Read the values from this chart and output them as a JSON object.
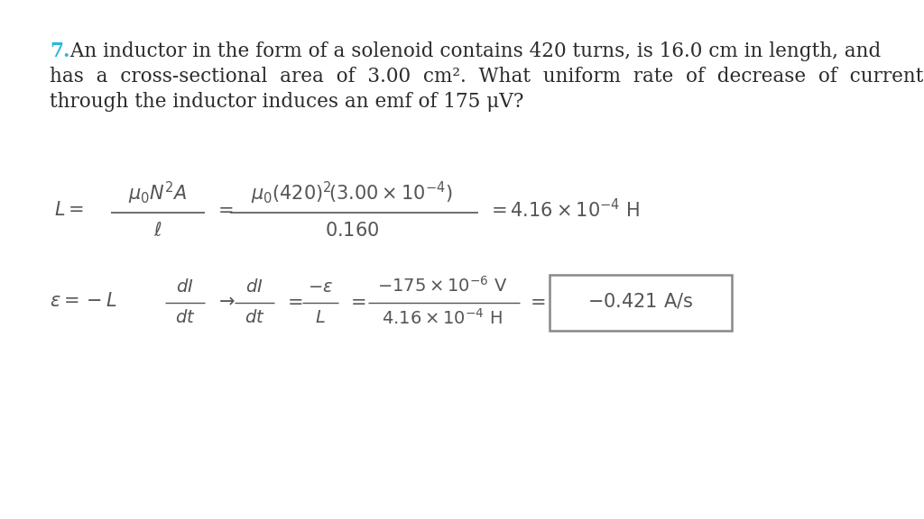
{
  "background_color": "#ffffff",
  "problem_number": "7.",
  "problem_number_color": "#29b6d8",
  "text_color": "#2b2b2b",
  "eq_color": "#555555",
  "box_edge_color": "#888888",
  "figsize": [
    10.24,
    5.76
  ],
  "dpi": 100,
  "text_fontsize": 15.5,
  "eq_fontsize": 15,
  "line1": " An inductor in the form of a solenoid contains 420 turns, is 16.0 cm in length, and",
  "line2": "has  a  cross-sectional  area  of  3.00  cm².  What  uniform  rate  of  decrease  of  current",
  "line3": "through the inductor induces an emf of 175 μV?"
}
